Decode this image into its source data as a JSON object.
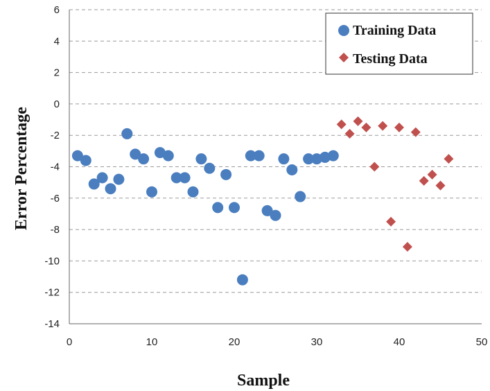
{
  "chart_data": {
    "type": "scatter",
    "title": "",
    "xlabel": "Sample",
    "ylabel": "Error Percentage",
    "xlim": [
      0,
      50
    ],
    "ylim": [
      -14,
      6
    ],
    "xticks": [
      0,
      10,
      20,
      30,
      40,
      50
    ],
    "yticks": [
      6,
      4,
      2,
      0,
      -2,
      -4,
      -6,
      -8,
      -10,
      -12,
      -14
    ],
    "grid": "horizontal dashed",
    "legend_position": "top-right",
    "series": [
      {
        "name": "Training Data",
        "marker": "circle",
        "color": "#4a7ebf",
        "points": [
          [
            1,
            -3.3
          ],
          [
            2,
            -3.6
          ],
          [
            3,
            -5.1
          ],
          [
            4,
            -4.7
          ],
          [
            5,
            -5.4
          ],
          [
            6,
            -4.8
          ],
          [
            7,
            -1.9
          ],
          [
            8,
            -3.2
          ],
          [
            9,
            -3.5
          ],
          [
            10,
            -5.6
          ],
          [
            11,
            -3.1
          ],
          [
            12,
            -3.3
          ],
          [
            13,
            -4.7
          ],
          [
            14,
            -4.7
          ],
          [
            15,
            -5.6
          ],
          [
            16,
            -3.5
          ],
          [
            17,
            -4.1
          ],
          [
            18,
            -6.6
          ],
          [
            19,
            -4.5
          ],
          [
            20,
            -6.6
          ],
          [
            21,
            -11.2
          ],
          [
            22,
            -3.3
          ],
          [
            23,
            -3.3
          ],
          [
            24,
            -6.8
          ],
          [
            25,
            -7.1
          ],
          [
            26,
            -3.5
          ],
          [
            27,
            -4.2
          ],
          [
            28,
            -5.9
          ],
          [
            29,
            -3.5
          ],
          [
            30,
            -3.5
          ],
          [
            31,
            -3.4
          ],
          [
            32,
            -3.3
          ]
        ]
      },
      {
        "name": "Testing Data",
        "marker": "diamond",
        "color": "#c0504d",
        "points": [
          [
            33,
            -1.3
          ],
          [
            34,
            -1.9
          ],
          [
            35,
            -1.1
          ],
          [
            36,
            -1.5
          ],
          [
            37,
            -4.0
          ],
          [
            38,
            -1.4
          ],
          [
            39,
            -7.5
          ],
          [
            40,
            -1.5
          ],
          [
            41,
            -9.1
          ],
          [
            42,
            -1.8
          ],
          [
            43,
            -4.9
          ],
          [
            44,
            -4.5
          ],
          [
            45,
            -5.2
          ],
          [
            46,
            -3.5
          ]
        ]
      }
    ]
  }
}
